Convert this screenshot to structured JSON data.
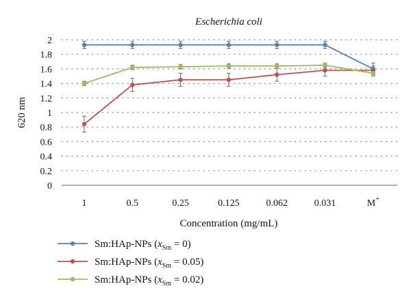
{
  "chart_data": {
    "type": "line",
    "title": "Escherichia coli",
    "xlabel": "Concentration (mg/mL)",
    "ylabel": "620 nm",
    "ylim": [
      0,
      2
    ],
    "yticks": [
      "0",
      "0.2",
      "0.4",
      "0.6",
      "0.8",
      "1",
      "1.2",
      "1.4",
      "1.6",
      "1.8",
      "2"
    ],
    "categories": [
      "1",
      "0.5",
      "0.25",
      "0.125",
      "0.062",
      "0.031",
      "M"
    ],
    "last_category_superscript": "+",
    "grid": "dotted horizontal",
    "legend_position": "bottom-left",
    "series": [
      {
        "name": "Sm:HAp-NPs (x_Sm = 0)",
        "legend_prefix": "Sm:HAp-NPs (",
        "legend_var": "x",
        "legend_sub": "Sm",
        "legend_suffix": " = 0)",
        "color": "#4f81bd",
        "values": [
          1.93,
          1.93,
          1.93,
          1.93,
          1.93,
          1.93,
          1.6
        ],
        "errors": [
          0.05,
          0.05,
          0.05,
          0.05,
          0.05,
          0.05,
          0.08
        ]
      },
      {
        "name": "Sm:HAp-NPs (x_Sm = 0.05)",
        "legend_prefix": "Sm:HAp-NPs (",
        "legend_var": "x",
        "legend_sub": "Sm",
        "legend_suffix": " = 0.05)",
        "color": "#c0504d",
        "values": [
          0.84,
          1.38,
          1.45,
          1.45,
          1.52,
          1.58,
          1.58
        ],
        "errors": [
          0.11,
          0.09,
          0.09,
          0.09,
          0.09,
          0.08,
          0.06
        ]
      },
      {
        "name": "Sm:HAp-NPs (x_Sm = 0.02)",
        "legend_prefix": "Sm:HAp-NPs (",
        "legend_var": "x",
        "legend_sub": "Sm",
        "legend_suffix": " = 0.02)",
        "color": "#9bbb59",
        "values": [
          1.4,
          1.62,
          1.63,
          1.64,
          1.64,
          1.65,
          1.54
        ],
        "errors": [
          0.03,
          0.03,
          0.03,
          0.03,
          0.03,
          0.03,
          0.04
        ]
      }
    ]
  }
}
